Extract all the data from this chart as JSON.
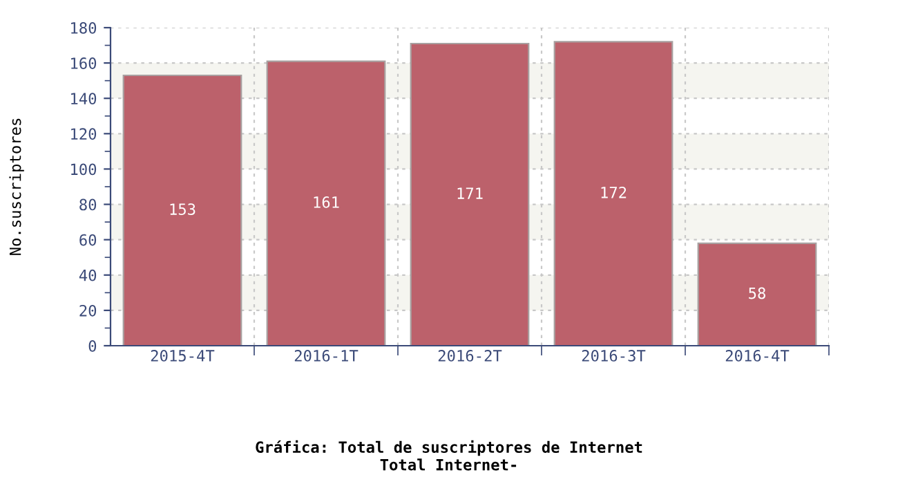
{
  "chart_data": {
    "type": "bar",
    "title": "Gráfica: Total de suscriptores de Internet",
    "subtitle": "Total Internet-",
    "ylabel": "No.suscriptores",
    "categories": [
      "2015-4T",
      "2016-1T",
      "2016-2T",
      "2016-3T",
      "2016-4T"
    ],
    "values": [
      153,
      161,
      171,
      172,
      58
    ],
    "color": "#bc616b",
    "ylim": [
      0,
      180
    ],
    "yticks": [
      0,
      20,
      40,
      60,
      80,
      100,
      120,
      140,
      160,
      180
    ],
    "grid": true,
    "data_labels": true,
    "bands": [
      {
        "axis": "y",
        "from": 20,
        "to": 40,
        "color": "#f5f5f0"
      },
      {
        "axis": "y",
        "from": 60,
        "to": 80,
        "color": "#f5f5f0"
      },
      {
        "axis": "y",
        "from": 100,
        "to": 120,
        "color": "#f5f5f0"
      },
      {
        "axis": "y",
        "from": 140,
        "to": 160,
        "color": "#f5f5f0"
      }
    ]
  }
}
